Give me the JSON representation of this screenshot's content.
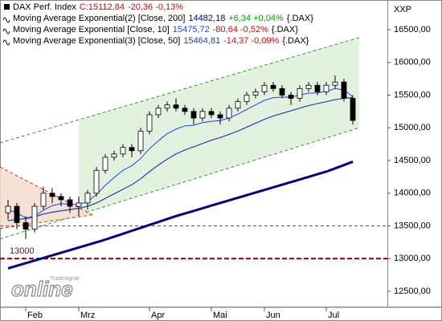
{
  "chart_data": {
    "type": "candlestick",
    "price_name": "DAX Perf. Index",
    "price_label": "C:15112,84",
    "price_change": "-20,36 -0,13%",
    "price_change_color": "#e00000",
    "axis_name": "XXP",
    "watermark": {
      "brand": "Tradesignal",
      "text": "online"
    },
    "categories": [
      null,
      null,
      "Feb",
      null,
      null,
      null,
      null,
      null,
      "Mrz",
      null,
      null,
      null,
      null,
      null,
      null,
      null,
      "Apr",
      null,
      null,
      null,
      null,
      null,
      null,
      "Mai",
      null,
      null,
      null,
      null,
      null,
      "Jun",
      null,
      null,
      null,
      null,
      null,
      null,
      "Jul",
      null,
      null,
      null
    ],
    "open": [
      13700,
      13800,
      13550,
      13450,
      13800,
      14000,
      13950,
      13900,
      13800,
      13850,
      14000,
      14350,
      14550,
      14600,
      14700,
      14650,
      14950,
      15200,
      15300,
      15350,
      15300,
      15250,
      15150,
      15250,
      15200,
      15150,
      15300,
      15400,
      15500,
      15550,
      15650,
      15600,
      15500,
      15450,
      15600,
      15650,
      15550,
      15650,
      15700,
      15450
    ],
    "high": [
      13900,
      13850,
      13650,
      13850,
      14100,
      14080,
      14000,
      13950,
      13950,
      14050,
      14400,
      14600,
      14650,
      14750,
      14750,
      15000,
      15250,
      15350,
      15400,
      15450,
      15350,
      15300,
      15300,
      15300,
      15250,
      15350,
      15450,
      15550,
      15600,
      15700,
      15700,
      15650,
      15550,
      15650,
      15700,
      15700,
      15700,
      15800,
      15750,
      15500
    ],
    "low": [
      13600,
      13450,
      13300,
      13400,
      13750,
      13850,
      13800,
      13700,
      13650,
      13750,
      13950,
      14300,
      14500,
      14550,
      14550,
      14600,
      14900,
      15150,
      15250,
      15250,
      15200,
      15050,
      15100,
      15150,
      15050,
      15100,
      15250,
      15350,
      15450,
      15500,
      15550,
      15450,
      15350,
      15400,
      15550,
      15500,
      15500,
      15600,
      15400,
      15050
    ],
    "close": [
      13800,
      13550,
      13450,
      13800,
      14000,
      13950,
      13900,
      13800,
      13850,
      14000,
      14350,
      14550,
      14600,
      14700,
      14650,
      14950,
      15200,
      15300,
      15350,
      15300,
      15250,
      15150,
      15250,
      15200,
      15150,
      15300,
      15400,
      15500,
      15550,
      15650,
      15600,
      15500,
      15450,
      15600,
      15650,
      15550,
      15650,
      15700,
      15450,
      15112.84
    ],
    "series": [
      {
        "name": "Moving Average Exponential(2) [Close, 200]",
        "color": "#000080",
        "width": 3,
        "last_label": "14482,18",
        "change": "+6,34 +0,04%",
        "change_color": "#00a000",
        "symbol": "{.DAX}",
        "values": [
          12850,
          12890,
          12930,
          12970,
          13010,
          13050,
          13090,
          13130,
          13170,
          13210,
          13250,
          13290,
          13335,
          13380,
          13425,
          13470,
          13515,
          13560,
          13605,
          13650,
          13690,
          13730,
          13770,
          13810,
          13850,
          13890,
          13930,
          13970,
          14010,
          14050,
          14090,
          14130,
          14170,
          14210,
          14250,
          14290,
          14330,
          14380,
          14430,
          14482.18
        ]
      },
      {
        "name": "Moving Average Exponential [Close, 10]",
        "color": "#1f3fff",
        "width": 1,
        "last_label": "15475,72",
        "change": "-80,64 -0,52%",
        "change_color": "#e00000",
        "symbol": "{.DAX}",
        "values": [
          13750,
          13700,
          13620,
          13650,
          13740,
          13810,
          13840,
          13830,
          13830,
          13870,
          13980,
          14120,
          14240,
          14350,
          14420,
          14530,
          14680,
          14800,
          14910,
          14980,
          15030,
          15040,
          15080,
          15100,
          15110,
          15150,
          15210,
          15280,
          15350,
          15420,
          15460,
          15470,
          15470,
          15500,
          15530,
          15530,
          15560,
          15600,
          15580,
          15475.72
        ]
      },
      {
        "name": "Moving Average Exponential(3) [Close, 50]",
        "color": "#2040b0",
        "width": 1.2,
        "last_label": "15464,81",
        "change": "-14,37 -0,09%",
        "change_color": "#e00000",
        "symbol": "{.DAX}",
        "values": [
          13580,
          13600,
          13610,
          13640,
          13680,
          13710,
          13730,
          13750,
          13770,
          13800,
          13850,
          13920,
          13990,
          14060,
          14130,
          14220,
          14330,
          14430,
          14520,
          14600,
          14660,
          14710,
          14760,
          14810,
          14850,
          14900,
          14950,
          15010,
          15070,
          15130,
          15180,
          15220,
          15260,
          15300,
          15340,
          15370,
          15400,
          15430,
          15450,
          15464.81
        ]
      }
    ],
    "channel": {
      "color": "#2e9a2e",
      "fill": "#e3f2de",
      "upper": [
        14770,
        16380
      ],
      "lower": [
        13300,
        15000
      ]
    },
    "wedge": {
      "color": "#d03020",
      "fill": "#f6dccd",
      "upper": [
        14400,
        13670
      ],
      "lower": [
        13460,
        13670
      ]
    },
    "hlines": [
      {
        "value": 13500,
        "color": "#c03030"
      },
      {
        "value": 13000,
        "color": "#8b0000",
        "label": "13000"
      }
    ],
    "ylim": [
      12267,
      16954
    ],
    "yticks": [
      {
        "value": 12500,
        "label": "12500,00"
      },
      {
        "value": 13000,
        "label": "13000,00"
      },
      {
        "value": 13500,
        "label": "13500,00"
      },
      {
        "value": 14000,
        "label": "14000,00"
      },
      {
        "value": 14500,
        "label": "14500,00"
      },
      {
        "value": 15000,
        "label": "15000,00"
      },
      {
        "value": 15500,
        "label": "15500,00"
      },
      {
        "value": 16000,
        "label": "16000,00"
      },
      {
        "value": 16500,
        "label": "16500,00"
      }
    ]
  }
}
